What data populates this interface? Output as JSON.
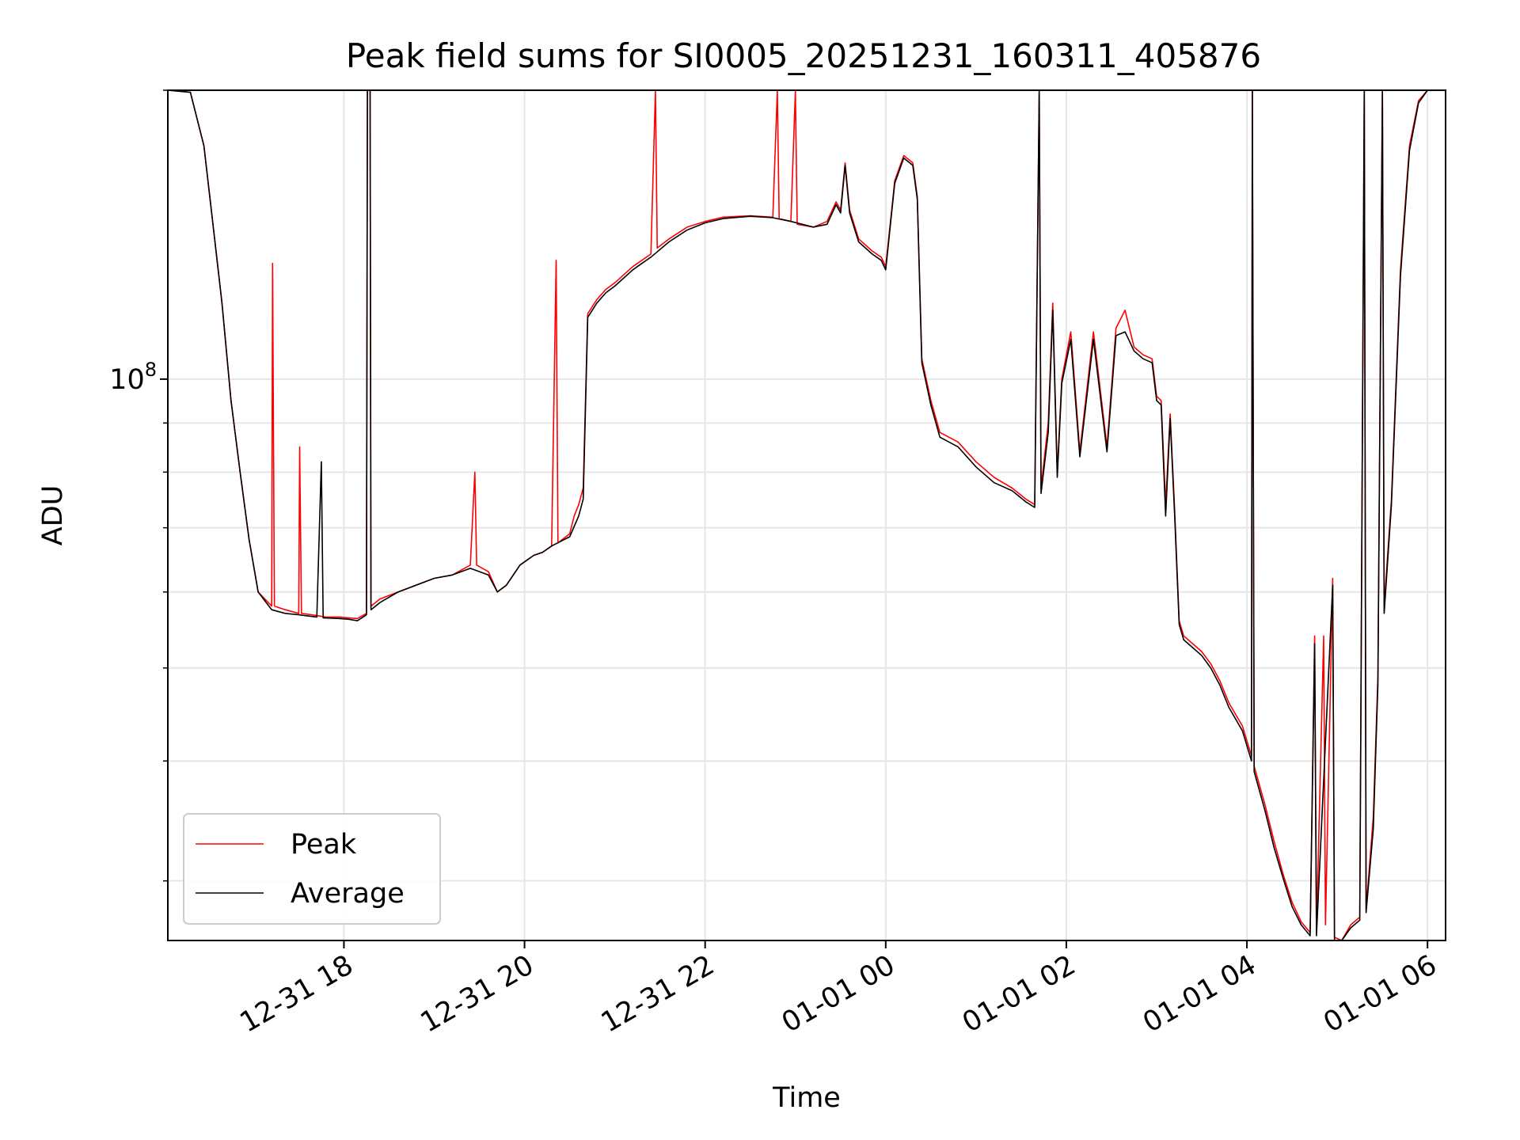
{
  "chart_data": {
    "type": "line",
    "title": "Peak field sums for SI0005_20251231_160311_405876",
    "xlabel": "Time",
    "ylabel": "ADU",
    "y_scale": "log",
    "ylim": [
      26000000,
      200000000
    ],
    "y_tick_labels": [
      {
        "value": 100000000,
        "label": "10^8"
      }
    ],
    "x_tick_labels": [
      "12-31 18",
      "12-31 20",
      "12-31 22",
      "01-01 00",
      "01-01 02",
      "01-01 04",
      "01-01 06"
    ],
    "x_tick_hours": [
      18,
      20,
      22,
      24,
      26,
      28,
      30
    ],
    "xlim_hours": [
      16.05,
      30.2
    ],
    "grid": true,
    "legend_placement": "lower-left",
    "series": [
      {
        "name": "Peak",
        "color": "#ff0000",
        "points": [
          [
            16.05,
            200000000
          ],
          [
            16.3,
            199000000
          ],
          [
            16.45,
            175000000
          ],
          [
            16.55,
            145000000
          ],
          [
            16.65,
            120000000
          ],
          [
            16.75,
            95000000
          ],
          [
            16.85,
            80000000
          ],
          [
            16.95,
            68000000
          ],
          [
            17.05,
            60000000
          ],
          [
            17.2,
            58000000
          ],
          [
            17.21,
            132000000
          ],
          [
            17.23,
            58000000
          ],
          [
            17.35,
            57500000
          ],
          [
            17.5,
            57000000
          ],
          [
            17.51,
            85000000
          ],
          [
            17.53,
            57000000
          ],
          [
            17.7,
            56700000
          ],
          [
            17.8,
            56500000
          ],
          [
            17.95,
            56500000
          ],
          [
            18.05,
            56400000
          ],
          [
            18.15,
            56300000
          ],
          [
            18.25,
            57000000
          ],
          [
            18.26,
            200000000
          ],
          [
            18.29,
            200000000
          ],
          [
            18.3,
            58000000
          ],
          [
            18.4,
            59000000
          ],
          [
            18.6,
            60000000
          ],
          [
            18.8,
            61000000
          ],
          [
            19.0,
            62000000
          ],
          [
            19.2,
            62500000
          ],
          [
            19.4,
            64000000
          ],
          [
            19.45,
            80000000
          ],
          [
            19.47,
            64000000
          ],
          [
            19.6,
            63000000
          ],
          [
            19.7,
            60000000
          ],
          [
            19.8,
            61000000
          ],
          [
            19.95,
            64000000
          ],
          [
            20.1,
            65500000
          ],
          [
            20.2,
            66000000
          ],
          [
            20.3,
            67000000
          ],
          [
            20.35,
            133000000
          ],
          [
            20.37,
            67500000
          ],
          [
            20.5,
            69000000
          ],
          [
            20.55,
            72000000
          ],
          [
            20.6,
            74000000
          ],
          [
            20.65,
            77000000
          ],
          [
            20.7,
            117000000
          ],
          [
            20.8,
            121000000
          ],
          [
            20.9,
            124000000
          ],
          [
            21.0,
            126000000
          ],
          [
            21.2,
            131000000
          ],
          [
            21.3,
            133000000
          ],
          [
            21.4,
            135000000
          ],
          [
            21.45,
            200000000
          ],
          [
            21.47,
            137000000
          ],
          [
            21.6,
            140000000
          ],
          [
            21.8,
            144000000
          ],
          [
            22.0,
            146000000
          ],
          [
            22.2,
            147500000
          ],
          [
            22.5,
            148000000
          ],
          [
            22.75,
            147500000
          ],
          [
            22.8,
            200000000
          ],
          [
            22.82,
            147000000
          ],
          [
            22.95,
            146000000
          ],
          [
            23.0,
            200000000
          ],
          [
            23.02,
            145000000
          ],
          [
            23.2,
            144000000
          ],
          [
            23.35,
            146000000
          ],
          [
            23.45,
            153000000
          ],
          [
            23.5,
            150000000
          ],
          [
            23.55,
            168000000
          ],
          [
            23.6,
            150000000
          ],
          [
            23.7,
            140000000
          ],
          [
            23.85,
            136000000
          ],
          [
            23.95,
            134000000
          ],
          [
            24.0,
            131000000
          ],
          [
            24.1,
            161000000
          ],
          [
            24.2,
            171000000
          ],
          [
            24.3,
            168000000
          ],
          [
            24.35,
            155000000
          ],
          [
            24.4,
            105000000
          ],
          [
            24.5,
            95000000
          ],
          [
            24.6,
            88000000
          ],
          [
            24.8,
            86000000
          ],
          [
            25.0,
            82000000
          ],
          [
            25.2,
            79000000
          ],
          [
            25.4,
            77000000
          ],
          [
            25.55,
            75000000
          ],
          [
            25.65,
            74000000
          ],
          [
            25.7,
            200000000
          ],
          [
            25.72,
            77000000
          ],
          [
            25.8,
            90000000
          ],
          [
            25.85,
            120000000
          ],
          [
            25.9,
            80000000
          ],
          [
            25.95,
            100000000
          ],
          [
            26.05,
            112000000
          ],
          [
            26.15,
            84000000
          ],
          [
            26.3,
            112000000
          ],
          [
            26.45,
            85000000
          ],
          [
            26.55,
            113000000
          ],
          [
            26.65,
            118000000
          ],
          [
            26.75,
            108000000
          ],
          [
            26.85,
            106000000
          ],
          [
            26.95,
            105000000
          ],
          [
            27.0,
            96000000
          ],
          [
            27.05,
            95000000
          ],
          [
            27.1,
            74000000
          ],
          [
            27.15,
            92000000
          ],
          [
            27.2,
            73000000
          ],
          [
            27.25,
            56000000
          ],
          [
            27.3,
            54000000
          ],
          [
            27.4,
            53000000
          ],
          [
            27.5,
            52000000
          ],
          [
            27.6,
            50500000
          ],
          [
            27.7,
            48500000
          ],
          [
            27.8,
            46000000
          ],
          [
            27.95,
            43500000
          ],
          [
            28.05,
            40500000
          ],
          [
            28.06,
            200000000
          ],
          [
            28.08,
            39500000
          ],
          [
            28.2,
            36000000
          ],
          [
            28.3,
            33000000
          ],
          [
            28.4,
            30500000
          ],
          [
            28.5,
            28500000
          ],
          [
            28.6,
            27200000
          ],
          [
            28.7,
            26500000
          ],
          [
            28.75,
            54000000
          ],
          [
            28.77,
            26500000
          ],
          [
            28.85,
            54000000
          ],
          [
            28.87,
            27000000
          ],
          [
            28.95,
            62000000
          ],
          [
            28.97,
            26200000
          ],
          [
            29.05,
            26000000
          ],
          [
            29.15,
            27000000
          ],
          [
            29.25,
            27500000
          ],
          [
            29.3,
            200000000
          ],
          [
            29.32,
            28000000
          ],
          [
            29.4,
            35000000
          ],
          [
            29.45,
            49000000
          ],
          [
            29.5,
            200000000
          ],
          [
            29.52,
            58000000
          ],
          [
            29.6,
            75000000
          ],
          [
            29.7,
            130000000
          ],
          [
            29.8,
            175000000
          ],
          [
            29.9,
            195000000
          ],
          [
            30.0,
            200000000
          ],
          [
            30.2,
            200000000
          ]
        ]
      },
      {
        "name": "Average",
        "color": "#000000",
        "points": [
          [
            16.05,
            200000000
          ],
          [
            16.3,
            199000000
          ],
          [
            16.45,
            175000000
          ],
          [
            16.55,
            145000000
          ],
          [
            16.65,
            120000000
          ],
          [
            16.75,
            95000000
          ],
          [
            16.85,
            80000000
          ],
          [
            16.95,
            68000000
          ],
          [
            17.05,
            60000000
          ],
          [
            17.2,
            57500000
          ],
          [
            17.35,
            57000000
          ],
          [
            17.5,
            56800000
          ],
          [
            17.7,
            56500000
          ],
          [
            17.75,
            82000000
          ],
          [
            17.77,
            56400000
          ],
          [
            17.95,
            56300000
          ],
          [
            18.05,
            56200000
          ],
          [
            18.15,
            56000000
          ],
          [
            18.25,
            56800000
          ],
          [
            18.26,
            200000000
          ],
          [
            18.29,
            200000000
          ],
          [
            18.3,
            57500000
          ],
          [
            18.4,
            58500000
          ],
          [
            18.6,
            60000000
          ],
          [
            18.8,
            61000000
          ],
          [
            19.0,
            62000000
          ],
          [
            19.2,
            62500000
          ],
          [
            19.4,
            63500000
          ],
          [
            19.6,
            62500000
          ],
          [
            19.7,
            60000000
          ],
          [
            19.8,
            61000000
          ],
          [
            19.95,
            64000000
          ],
          [
            20.1,
            65500000
          ],
          [
            20.2,
            66000000
          ],
          [
            20.3,
            67000000
          ],
          [
            20.5,
            68500000
          ],
          [
            20.6,
            72000000
          ],
          [
            20.65,
            75000000
          ],
          [
            20.7,
            116000000
          ],
          [
            20.8,
            120000000
          ],
          [
            20.9,
            123000000
          ],
          [
            21.0,
            125000000
          ],
          [
            21.2,
            130000000
          ],
          [
            21.3,
            132000000
          ],
          [
            21.4,
            134000000
          ],
          [
            21.6,
            139000000
          ],
          [
            21.8,
            143000000
          ],
          [
            22.0,
            145500000
          ],
          [
            22.2,
            147000000
          ],
          [
            22.5,
            147800000
          ],
          [
            22.75,
            147300000
          ],
          [
            22.95,
            146000000
          ],
          [
            23.2,
            144000000
          ],
          [
            23.35,
            145000000
          ],
          [
            23.45,
            152000000
          ],
          [
            23.5,
            149000000
          ],
          [
            23.55,
            167000000
          ],
          [
            23.6,
            149000000
          ],
          [
            23.7,
            139000000
          ],
          [
            23.85,
            135000000
          ],
          [
            23.95,
            133000000
          ],
          [
            24.0,
            130000000
          ],
          [
            24.1,
            160000000
          ],
          [
            24.2,
            170000000
          ],
          [
            24.3,
            167000000
          ],
          [
            24.35,
            154000000
          ],
          [
            24.4,
            104000000
          ],
          [
            24.5,
            94000000
          ],
          [
            24.6,
            87000000
          ],
          [
            24.8,
            85000000
          ],
          [
            25.0,
            81000000
          ],
          [
            25.2,
            78000000
          ],
          [
            25.4,
            76500000
          ],
          [
            25.55,
            74500000
          ],
          [
            25.65,
            73500000
          ],
          [
            25.7,
            200000000
          ],
          [
            25.72,
            76000000
          ],
          [
            25.8,
            88000000
          ],
          [
            25.85,
            118000000
          ],
          [
            25.9,
            79000000
          ],
          [
            25.95,
            99000000
          ],
          [
            26.05,
            110000000
          ],
          [
            26.15,
            83000000
          ],
          [
            26.3,
            110000000
          ],
          [
            26.45,
            84000000
          ],
          [
            26.55,
            111000000
          ],
          [
            26.65,
            112000000
          ],
          [
            26.75,
            107000000
          ],
          [
            26.85,
            105000000
          ],
          [
            26.95,
            104000000
          ],
          [
            27.0,
            95000000
          ],
          [
            27.05,
            94000000
          ],
          [
            27.1,
            72000000
          ],
          [
            27.15,
            91000000
          ],
          [
            27.2,
            72000000
          ],
          [
            27.25,
            55500000
          ],
          [
            27.3,
            53500000
          ],
          [
            27.4,
            52500000
          ],
          [
            27.5,
            51500000
          ],
          [
            27.6,
            50000000
          ],
          [
            27.7,
            48000000
          ],
          [
            27.8,
            45500000
          ],
          [
            27.95,
            43000000
          ],
          [
            28.05,
            40000000
          ],
          [
            28.06,
            200000000
          ],
          [
            28.08,
            39000000
          ],
          [
            28.2,
            35500000
          ],
          [
            28.3,
            32500000
          ],
          [
            28.4,
            30200000
          ],
          [
            28.5,
            28200000
          ],
          [
            28.6,
            27000000
          ],
          [
            28.7,
            26300000
          ],
          [
            28.75,
            53000000
          ],
          [
            28.77,
            26300000
          ],
          [
            28.95,
            61000000
          ],
          [
            28.97,
            26000000
          ],
          [
            29.05,
            25800000
          ],
          [
            29.15,
            26800000
          ],
          [
            29.25,
            27300000
          ],
          [
            29.3,
            200000000
          ],
          [
            29.32,
            27800000
          ],
          [
            29.4,
            34000000
          ],
          [
            29.45,
            48000000
          ],
          [
            29.5,
            200000000
          ],
          [
            29.52,
            57000000
          ],
          [
            29.6,
            74000000
          ],
          [
            29.7,
            128000000
          ],
          [
            29.8,
            173000000
          ],
          [
            29.9,
            194000000
          ],
          [
            30.0,
            200000000
          ],
          [
            30.2,
            200000000
          ]
        ]
      }
    ]
  }
}
